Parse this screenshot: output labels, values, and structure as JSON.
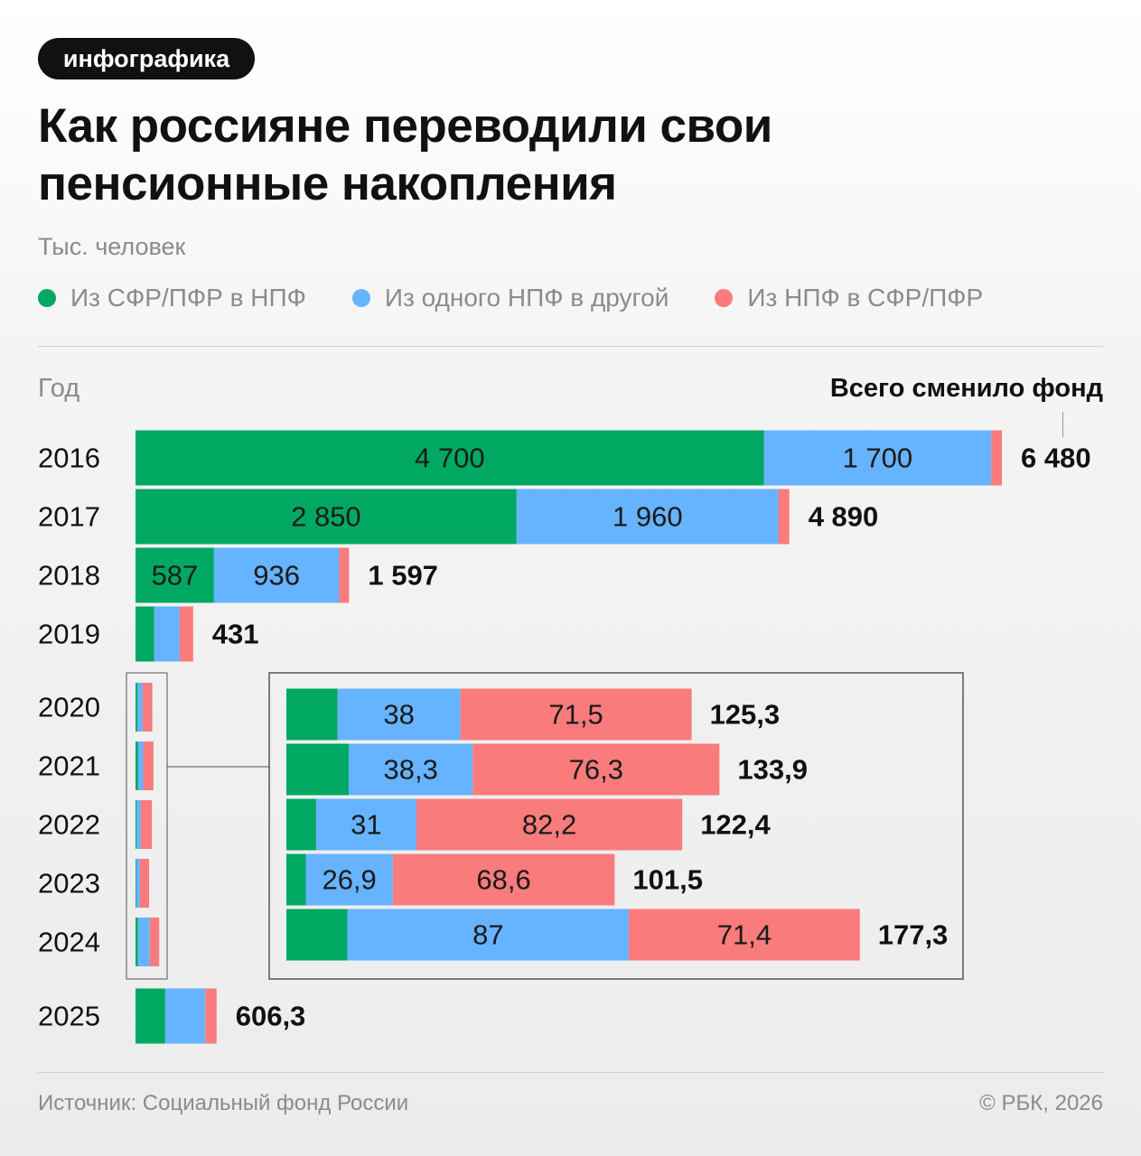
{
  "tag": "инфографика",
  "title_line1": "Как россияне переводили свои",
  "title_line2": "пенсионные накопления",
  "subtitle": "Тыс. человек",
  "year_header": "Год",
  "total_header": "Всего сменило фонд",
  "source": "Источник: Социальный фонд России",
  "copyright": "© РБК, 2026",
  "colors": {
    "green": "#00a862",
    "blue": "#66b3ff",
    "red": "#f97b7b"
  },
  "chart_data": {
    "type": "bar",
    "orientation": "horizontal",
    "stacked": true,
    "unit": "Тыс. человек",
    "categories": [
      "2016",
      "2017",
      "2018",
      "2019",
      "2020",
      "2021",
      "2022",
      "2023",
      "2024",
      "2025"
    ],
    "series": [
      {
        "name": "Из СФР/ПФР в НПФ",
        "color": "#00a862",
        "values": [
          4700,
          2850,
          587,
          140,
          15.8,
          19.3,
          9.2,
          6,
          18.9,
          222
        ],
        "labels": [
          "4 700",
          "2 850",
          "587",
          "",
          "",
          "",
          "",
          "",
          "",
          ""
        ]
      },
      {
        "name": "Из одного НПФ в другой",
        "color": "#66b3ff",
        "values": [
          1700,
          1960,
          936,
          190,
          38,
          38.3,
          31,
          26.9,
          87,
          300
        ],
        "labels": [
          "1 700",
          "1 960",
          "936",
          "",
          "38",
          "38,3",
          "31",
          "26,9",
          "87",
          ""
        ]
      },
      {
        "name": "Из НПФ в СФР/ПФР",
        "color": "#f97b7b",
        "values": [
          80,
          80,
          74,
          101,
          71.5,
          76.3,
          82.2,
          68.6,
          71.4,
          84.3
        ],
        "labels": [
          "",
          "",
          "",
          "",
          "71,5",
          "76,3",
          "82,2",
          "68,6",
          "71,4",
          ""
        ]
      }
    ],
    "totals": [
      6480,
      4890,
      1597,
      431,
      125.3,
      133.9,
      122.4,
      101.5,
      177.3,
      606.3
    ],
    "total_labels": [
      "6 480",
      "4 890",
      "1 597",
      "431",
      "125,3",
      "133,9",
      "122,4",
      "101,5",
      "177,3",
      "606,3"
    ],
    "zoom_inset": {
      "years": [
        "2020",
        "2021",
        "2022",
        "2023",
        "2024"
      ]
    }
  }
}
